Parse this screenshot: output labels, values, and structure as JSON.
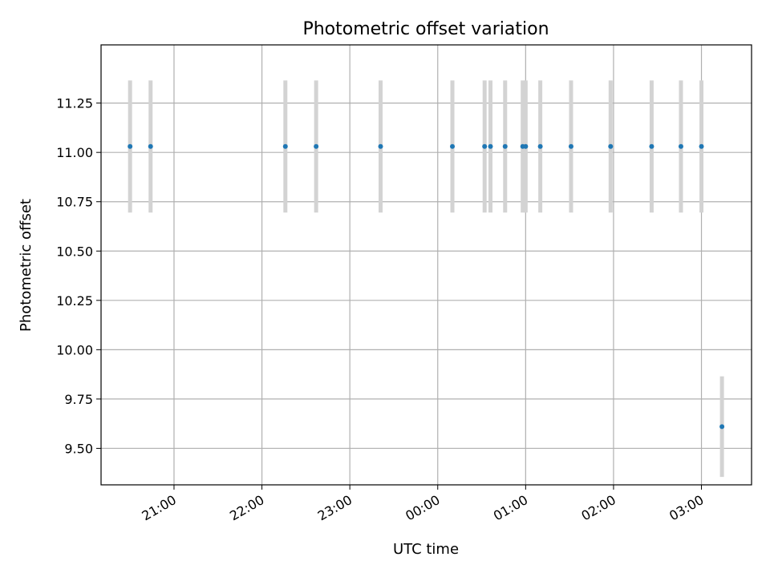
{
  "chart_data": {
    "type": "scatter",
    "title": "Photometric offset variation",
    "xlabel": "UTC time",
    "ylabel": "Photometric offset",
    "grid": true,
    "x_tick_labels": [
      "21:00",
      "22:00",
      "23:00",
      "00:00",
      "01:00",
      "02:00",
      "03:00"
    ],
    "x_ticks_hours": [
      21,
      22,
      23,
      24,
      25,
      26,
      27
    ],
    "y_ticks": [
      9.5,
      9.75,
      10.0,
      10.25,
      10.5,
      10.75,
      11.0,
      11.25
    ],
    "y_tick_labels": [
      "9.50",
      "9.75",
      "10.00",
      "10.25",
      "10.50",
      "10.75",
      "11.00",
      "11.25"
    ],
    "xlim_hours": [
      20.17,
      27.57
    ],
    "ylim": [
      9.315,
      11.545
    ],
    "points": [
      {
        "time": "20:30",
        "y": 11.03,
        "err": 0.335
      },
      {
        "time": "20:44",
        "y": 11.03,
        "err": 0.335
      },
      {
        "time": "22:16",
        "y": 11.03,
        "err": 0.335
      },
      {
        "time": "22:37",
        "y": 11.03,
        "err": 0.335
      },
      {
        "time": "23:21",
        "y": 11.03,
        "err": 0.335
      },
      {
        "time": "00:10",
        "y": 11.03,
        "err": 0.335
      },
      {
        "time": "00:32",
        "y": 11.03,
        "err": 0.335
      },
      {
        "time": "00:36",
        "y": 11.03,
        "err": 0.335
      },
      {
        "time": "00:46",
        "y": 11.03,
        "err": 0.335
      },
      {
        "time": "00:58",
        "y": 11.03,
        "err": 0.335
      },
      {
        "time": "01:00",
        "y": 11.03,
        "err": 0.335
      },
      {
        "time": "01:10",
        "y": 11.03,
        "err": 0.335
      },
      {
        "time": "01:31",
        "y": 11.03,
        "err": 0.335
      },
      {
        "time": "01:58",
        "y": 11.03,
        "err": 0.335
      },
      {
        "time": "02:26",
        "y": 11.03,
        "err": 0.335
      },
      {
        "time": "02:46",
        "y": 11.03,
        "err": 0.335
      },
      {
        "time": "03:00",
        "y": 11.03,
        "err": 0.335
      },
      {
        "time": "03:14",
        "y": 9.61,
        "err": 0.255
      }
    ],
    "colors": {
      "marker": "#1f77b4",
      "errorbar": "#d3d3d3",
      "grid": "#b0b0b0"
    }
  }
}
